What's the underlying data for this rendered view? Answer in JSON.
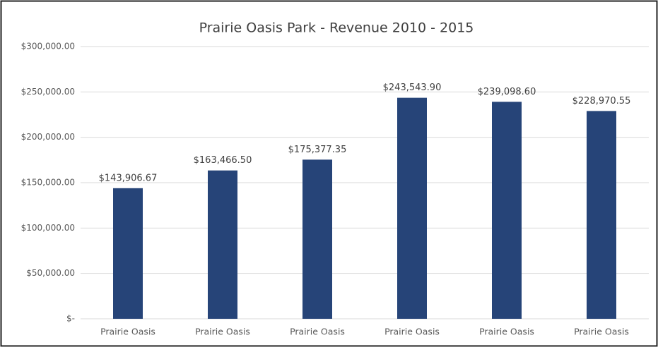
{
  "chart_data": {
    "type": "bar",
    "title": "Prairie Oasis Park - Revenue 2010 - 2015",
    "categories": [
      "Prairie Oasis",
      "Prairie Oasis",
      "Prairie Oasis",
      "Prairie Oasis",
      "Prairie Oasis",
      "Prairie Oasis"
    ],
    "values": [
      143906.67,
      163466.5,
      175377.35,
      243543.9,
      239098.6,
      228970.55
    ],
    "value_labels": [
      "$143,906.67",
      "$163,466.50",
      "$175,377.35",
      "$243,543.90",
      "$239,098.60",
      "$228,970.55"
    ],
    "color": "#264478",
    "ylim": [
      0,
      300000
    ],
    "yticks": [
      {
        "value": 0,
        "label": "$-"
      },
      {
        "value": 50000,
        "label": "$50,000.00"
      },
      {
        "value": 100000,
        "label": "$100,000.00"
      },
      {
        "value": 150000,
        "label": "$150,000.00"
      },
      {
        "value": 200000,
        "label": "$200,000.00"
      },
      {
        "value": 250000,
        "label": "$250,000.00"
      },
      {
        "value": 300000,
        "label": "$300,000.00"
      }
    ],
    "grid": true
  }
}
